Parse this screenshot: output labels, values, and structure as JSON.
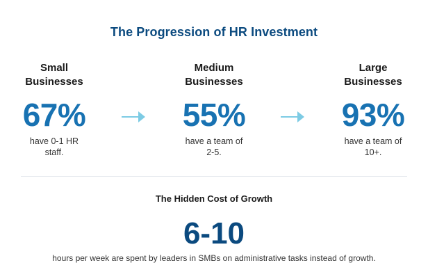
{
  "title": "The Progression of HR Investment",
  "stats": [
    {
      "label_line1": "Small",
      "label_line2": "Businesses",
      "value": "67%",
      "desc_line1": "have 0-1 HR",
      "desc_line2": "staff."
    },
    {
      "label_line1": "Medium",
      "label_line2": "Businesses",
      "value": "55%",
      "desc_line1": "have a team of",
      "desc_line2": "2-5."
    },
    {
      "label_line1": "Large",
      "label_line2": "Businesses",
      "value": "93%",
      "desc_line1": "have a team of",
      "desc_line2": "10+."
    }
  ],
  "hidden_cost": {
    "title": "The Hidden Cost of Growth",
    "value": "6-10",
    "caption": "hours per week are spent by leaders in SMBs on administrative tasks instead of growth."
  },
  "colors": {
    "title": "#0b4a7f",
    "stat_value": "#1872b2",
    "arrow": "#7dcbe4",
    "big_value": "#0b4a7f"
  },
  "icons": [
    "arrow-right-icon",
    "arrow-right-icon"
  ]
}
